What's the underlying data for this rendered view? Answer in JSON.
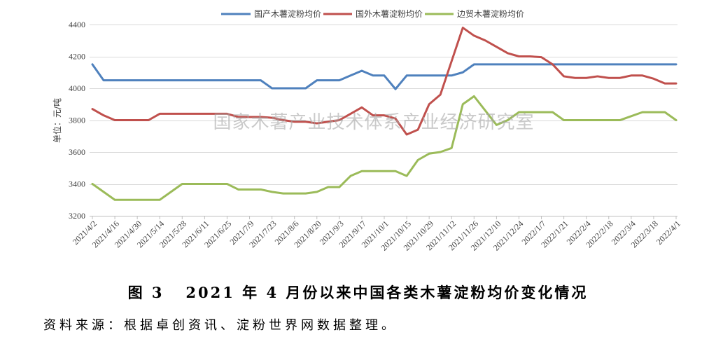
{
  "watermark": "国家木薯产业技术体系产业经济研究室",
  "figure": {
    "caption": "图 3   2021 年 4 月份以来中国各类木薯淀粉均价变化情况",
    "source": "资料来源：根据卓创资讯、淀粉世界网数据整理。"
  },
  "chart_data": {
    "type": "line",
    "ylabel": "单位：元/吨",
    "ylim": [
      3200,
      4400
    ],
    "yticks": [
      3200,
      3400,
      3600,
      3800,
      4000,
      4200,
      4400
    ],
    "grid": true,
    "legend": "top",
    "x_ticks": [
      "2021/4/2",
      "2021/4/16",
      "2021/4/30",
      "2021/5/14",
      "2021/5/28",
      "2021/6/11",
      "2021/6/25",
      "2021/7/9",
      "2021/7/23",
      "2021/8/6",
      "2021/8/20",
      "2021/9/3",
      "2021/9/17",
      "2021/10/1",
      "2021/10/15",
      "2021/10/29",
      "2021/11/12",
      "2021/11/26",
      "2021/12/10",
      "2021/12/24",
      "2022/1/7",
      "2022/1/21",
      "2022/2/4",
      "2022/2/18",
      "2022/3/4",
      "2022/3/18",
      "2022/4/1"
    ],
    "series": [
      {
        "name": "国产木薯淀粉均价",
        "color": "#4F81BD",
        "values": [
          4150,
          4050,
          4050,
          4050,
          4050,
          4050,
          4050,
          4050,
          4050,
          4050,
          4050,
          4050,
          4050,
          4050,
          4050,
          4050,
          4000,
          4000,
          4000,
          4000,
          4050,
          4050,
          4050,
          4080,
          4110,
          4080,
          4080,
          3995,
          4080,
          4080,
          4080,
          4080,
          4080,
          4100,
          4150,
          4150,
          4150,
          4150,
          4150,
          4150,
          4150,
          4150,
          4150,
          4150,
          4150,
          4150,
          4150,
          4150,
          4150,
          4150,
          4150,
          4150,
          4150
        ]
      },
      {
        "name": "国外木薯淀粉均价",
        "color": "#C0504D",
        "values": [
          3870,
          3830,
          3800,
          3800,
          3800,
          3800,
          3840,
          3840,
          3840,
          3840,
          3840,
          3840,
          3840,
          3820,
          3820,
          3820,
          3815,
          3800,
          3790,
          3790,
          3780,
          3790,
          3800,
          3840,
          3880,
          3830,
          3830,
          3810,
          3710,
          3740,
          3900,
          3960,
          4170,
          4380,
          4330,
          4300,
          4260,
          4220,
          4200,
          4200,
          4195,
          4150,
          4075,
          4065,
          4065,
          4075,
          4065,
          4065,
          4080,
          4080,
          4060,
          4030,
          4030
        ]
      },
      {
        "name": "边贸木薯淀粉均价",
        "color": "#9BBB59",
        "values": [
          3400,
          3350,
          3300,
          3300,
          3300,
          3300,
          3300,
          3350,
          3400,
          3400,
          3400,
          3400,
          3400,
          3365,
          3365,
          3365,
          3350,
          3340,
          3340,
          3340,
          3350,
          3380,
          3380,
          3450,
          3480,
          3480,
          3480,
          3480,
          3450,
          3550,
          3590,
          3600,
          3625,
          3900,
          3950,
          3860,
          3770,
          3800,
          3850,
          3850,
          3850,
          3850,
          3800,
          3800,
          3800,
          3800,
          3800,
          3800,
          3825,
          3850,
          3850,
          3850,
          3800
        ]
      }
    ]
  }
}
